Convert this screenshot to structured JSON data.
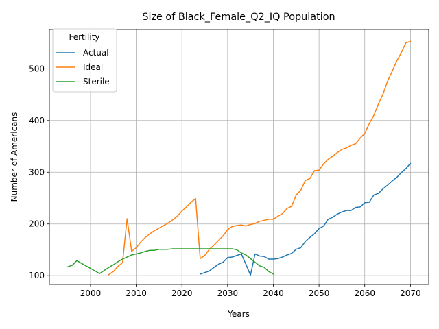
{
  "chart_data": {
    "type": "line",
    "title": "Size of Black_Female_Q2_IQ Population",
    "xlabel": "Years",
    "ylabel": "Number of Americans",
    "xlim": [
      1991,
      2074
    ],
    "ylim": [
      83,
      576
    ],
    "xticks": [
      2000,
      2010,
      2020,
      2030,
      2040,
      2050,
      2060,
      2070
    ],
    "yticks": [
      100,
      200,
      300,
      400,
      500
    ],
    "grid": true,
    "legend": {
      "title": "Fertility",
      "placement": "top-left"
    },
    "series": [
      {
        "name": "Actual",
        "color": "#1f77b4",
        "x": [
          2024,
          2025,
          2026,
          2027,
          2028,
          2029,
          2030,
          2031,
          2032,
          2033,
          2034,
          2035,
          2036,
          2037,
          2038,
          2039,
          2040,
          2041,
          2042,
          2043,
          2044,
          2045,
          2046,
          2047,
          2048,
          2049,
          2050,
          2051,
          2052,
          2053,
          2054,
          2055,
          2056,
          2057,
          2058,
          2059,
          2060,
          2061,
          2062,
          2063,
          2064,
          2065,
          2066,
          2067,
          2068,
          2069,
          2070
        ],
        "y": [
          103,
          106,
          109,
          116,
          122,
          126,
          135,
          136,
          139,
          142,
          122,
          101,
          142,
          138,
          137,
          132,
          132,
          133,
          136,
          140,
          143,
          151,
          154,
          166,
          174,
          181,
          191,
          196,
          209,
          213,
          219,
          223,
          226,
          226,
          232,
          233,
          241,
          242,
          256,
          259,
          268,
          275,
          283,
          290,
          299,
          307,
          317
        ]
      },
      {
        "name": "Ideal",
        "color": "#ff7f0e",
        "x": [
          2004,
          2005,
          2006,
          2007,
          2008,
          2009,
          2010,
          2011,
          2012,
          2013,
          2014,
          2015,
          2016,
          2017,
          2018,
          2019,
          2020,
          2021,
          2022,
          2023,
          2024,
          2025,
          2026,
          2027,
          2028,
          2029,
          2030,
          2031,
          2032,
          2033,
          2034,
          2035,
          2036,
          2037,
          2038,
          2039,
          2040,
          2041,
          2042,
          2043,
          2044,
          2045,
          2046,
          2047,
          2048,
          2049,
          2050,
          2051,
          2052,
          2053,
          2054,
          2055,
          2056,
          2057,
          2058,
          2059,
          2060,
          2061,
          2062,
          2063,
          2064,
          2065,
          2066,
          2067,
          2068,
          2069,
          2070
        ],
        "y": [
          102,
          108,
          118,
          125,
          210,
          147,
          154,
          165,
          174,
          181,
          187,
          192,
          197,
          202,
          208,
          215,
          225,
          233,
          242,
          249,
          133,
          139,
          151,
          159,
          168,
          177,
          189,
          195,
          197,
          198,
          196,
          199,
          201,
          205,
          207,
          209,
          209,
          215,
          220,
          230,
          234,
          256,
          265,
          284,
          288,
          303,
          304,
          316,
          325,
          331,
          338,
          344,
          347,
          352,
          355,
          366,
          375,
          394,
          410,
          432,
          451,
          476,
          495,
          515,
          531,
          550,
          553
        ]
      },
      {
        "name": "Sterile",
        "color": "#2ca02c",
        "x": [
          1995,
          1996,
          1997,
          1998,
          1999,
          2000,
          2001,
          2002,
          2003,
          2004,
          2005,
          2006,
          2007,
          2008,
          2009,
          2010,
          2011,
          2012,
          2013,
          2014,
          2015,
          2016,
          2017,
          2018,
          2019,
          2020,
          2021,
          2022,
          2023,
          2024,
          2025,
          2026,
          2027,
          2028,
          2029,
          2030,
          2031,
          2032,
          2033,
          2034,
          2035,
          2036,
          2037,
          2038,
          2039,
          2040
        ],
        "y": [
          117,
          120,
          129,
          124,
          119,
          114,
          109,
          104,
          110,
          116,
          121,
          127,
          132,
          136,
          140,
          142,
          144,
          147,
          149,
          149,
          151,
          151,
          151,
          152,
          152,
          152,
          152,
          152,
          152,
          152,
          152,
          152,
          152,
          152,
          152,
          152,
          152,
          150,
          144,
          140,
          133,
          126,
          119,
          116,
          108,
          103
        ]
      }
    ]
  }
}
